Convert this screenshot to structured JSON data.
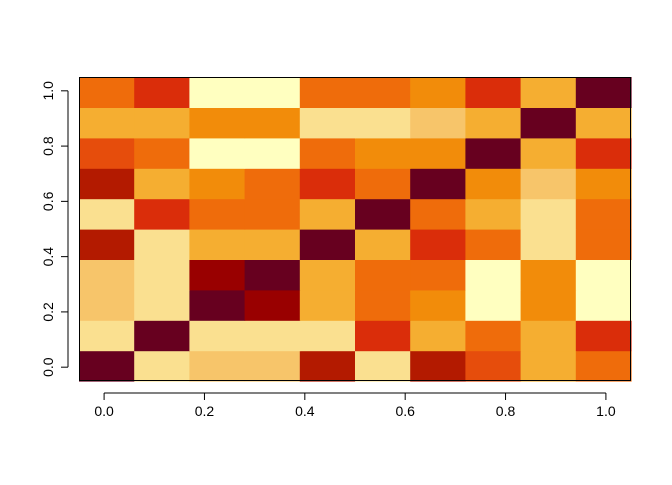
{
  "chart_data": {
    "type": "heatmap",
    "title": "",
    "xlabel": "",
    "ylabel": "",
    "xlim": [
      -0.05,
      1.05
    ],
    "ylim": [
      -0.05,
      1.05
    ],
    "n_cols": 10,
    "n_rows": 10,
    "x_ticks": [
      {
        "value": 0.0,
        "label": "0.0"
      },
      {
        "value": 0.2,
        "label": "0.2"
      },
      {
        "value": 0.4,
        "label": "0.4"
      },
      {
        "value": 0.6,
        "label": "0.6"
      },
      {
        "value": 0.8,
        "label": "0.8"
      },
      {
        "value": 1.0,
        "label": "1.0"
      }
    ],
    "y_ticks": [
      {
        "value": 0.0,
        "label": "0.0"
      },
      {
        "value": 0.2,
        "label": "0.2"
      },
      {
        "value": 0.4,
        "label": "0.4"
      },
      {
        "value": 0.6,
        "label": "0.6"
      },
      {
        "value": 0.8,
        "label": "0.8"
      },
      {
        "value": 1.0,
        "label": "1.0"
      }
    ],
    "palette": [
      "#67001f",
      "#990000",
      "#b31a00",
      "#da2d0a",
      "#e64d0c",
      "#ef6c0b",
      "#f28c0a",
      "#f5ae31",
      "#f7c56a",
      "#fae090",
      "#ffffc0"
    ],
    "cells": [
      [
        0,
        9,
        8,
        8,
        2,
        9,
        2,
        4,
        7,
        5
      ],
      [
        9,
        0,
        9,
        9,
        9,
        3,
        7,
        5,
        7,
        3
      ],
      [
        8,
        9,
        0,
        1,
        7,
        5,
        6,
        10,
        6,
        10
      ],
      [
        8,
        9,
        1,
        0,
        7,
        5,
        5,
        10,
        6,
        10
      ],
      [
        2,
        9,
        7,
        7,
        0,
        7,
        3,
        5,
        9,
        5
      ],
      [
        9,
        3,
        5,
        5,
        7,
        0,
        5,
        7,
        9,
        5
      ],
      [
        2,
        7,
        6,
        5,
        3,
        5,
        0,
        6,
        8,
        6
      ],
      [
        4,
        5,
        10,
        10,
        5,
        6,
        6,
        0,
        7,
        3
      ],
      [
        7,
        7,
        6,
        6,
        9,
        9,
        8,
        7,
        0,
        7
      ],
      [
        5,
        3,
        10,
        10,
        5,
        5,
        6,
        3,
        7,
        0
      ]
    ]
  }
}
